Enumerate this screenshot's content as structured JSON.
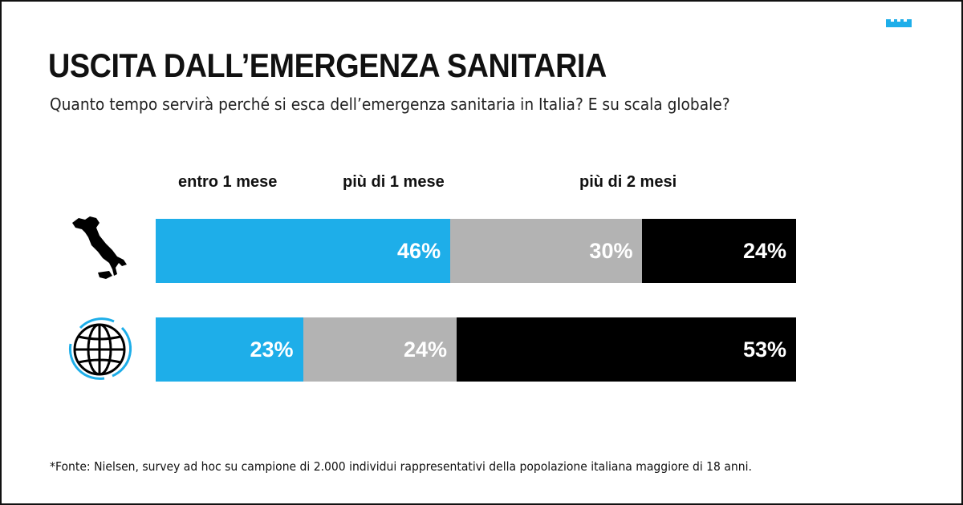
{
  "title": "USCITA DALL’EMERGENZA SANITARIA",
  "subtitle": "Quanto tempo servirà perché si esca dell’emergenza sanitaria in Italia? E su scala globale?",
  "footnote": "*Fonte: Nielsen, survey ad hoc su campione di 2.000 individui rappresentativi della popolazione italiana maggiore di 18 anni.",
  "chart_data": {
    "type": "bar",
    "orientation": "horizontal-stacked-100",
    "categories": [
      "Italia",
      "Globale"
    ],
    "category_icons": [
      "italy-map-icon",
      "globe-icon"
    ],
    "legend": [
      "entro 1 mese",
      "più di 1 mese",
      "più di 2 mesi"
    ],
    "legend_placement": "top",
    "series": [
      {
        "name": "entro 1 mese",
        "values": [
          46,
          23
        ],
        "labels": [
          "46%",
          "23%"
        ],
        "color": "#1eaee9"
      },
      {
        "name": "più di 1 mese",
        "values": [
          30,
          24
        ],
        "labels": [
          "30%",
          "24%"
        ],
        "color": "#b3b3b3"
      },
      {
        "name": "più di 2 mesi",
        "values": [
          24,
          53
        ],
        "labels": [
          "24%",
          "53%"
        ],
        "color": "#000000"
      }
    ],
    "xlim": [
      0,
      100
    ],
    "grid": false
  }
}
